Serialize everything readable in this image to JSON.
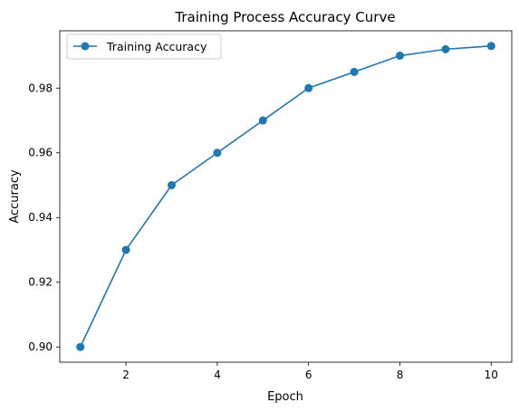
{
  "chart_data": {
    "type": "line",
    "title": "Training Process Accuracy Curve",
    "xlabel": "Epoch",
    "ylabel": "Accuracy",
    "x": [
      1,
      2,
      3,
      4,
      5,
      6,
      7,
      8,
      9,
      10
    ],
    "series": [
      {
        "name": "Training Accuracy",
        "values": [
          0.9,
          0.93,
          0.95,
          0.96,
          0.97,
          0.98,
          0.985,
          0.99,
          0.992,
          0.993
        ],
        "color": "#1f77b4",
        "marker": "circle"
      }
    ],
    "xlim": [
      0.55,
      10.45
    ],
    "ylim": [
      0.8953,
      0.9977
    ],
    "xticks": [
      2,
      4,
      6,
      8,
      10
    ],
    "xtick_labels": [
      "2",
      "4",
      "6",
      "8",
      "10"
    ],
    "yticks": [
      0.9,
      0.92,
      0.94,
      0.96,
      0.98
    ],
    "ytick_labels": [
      "0.90",
      "0.92",
      "0.94",
      "0.96",
      "0.98"
    ],
    "grid": false,
    "legend_position": "top-left"
  }
}
